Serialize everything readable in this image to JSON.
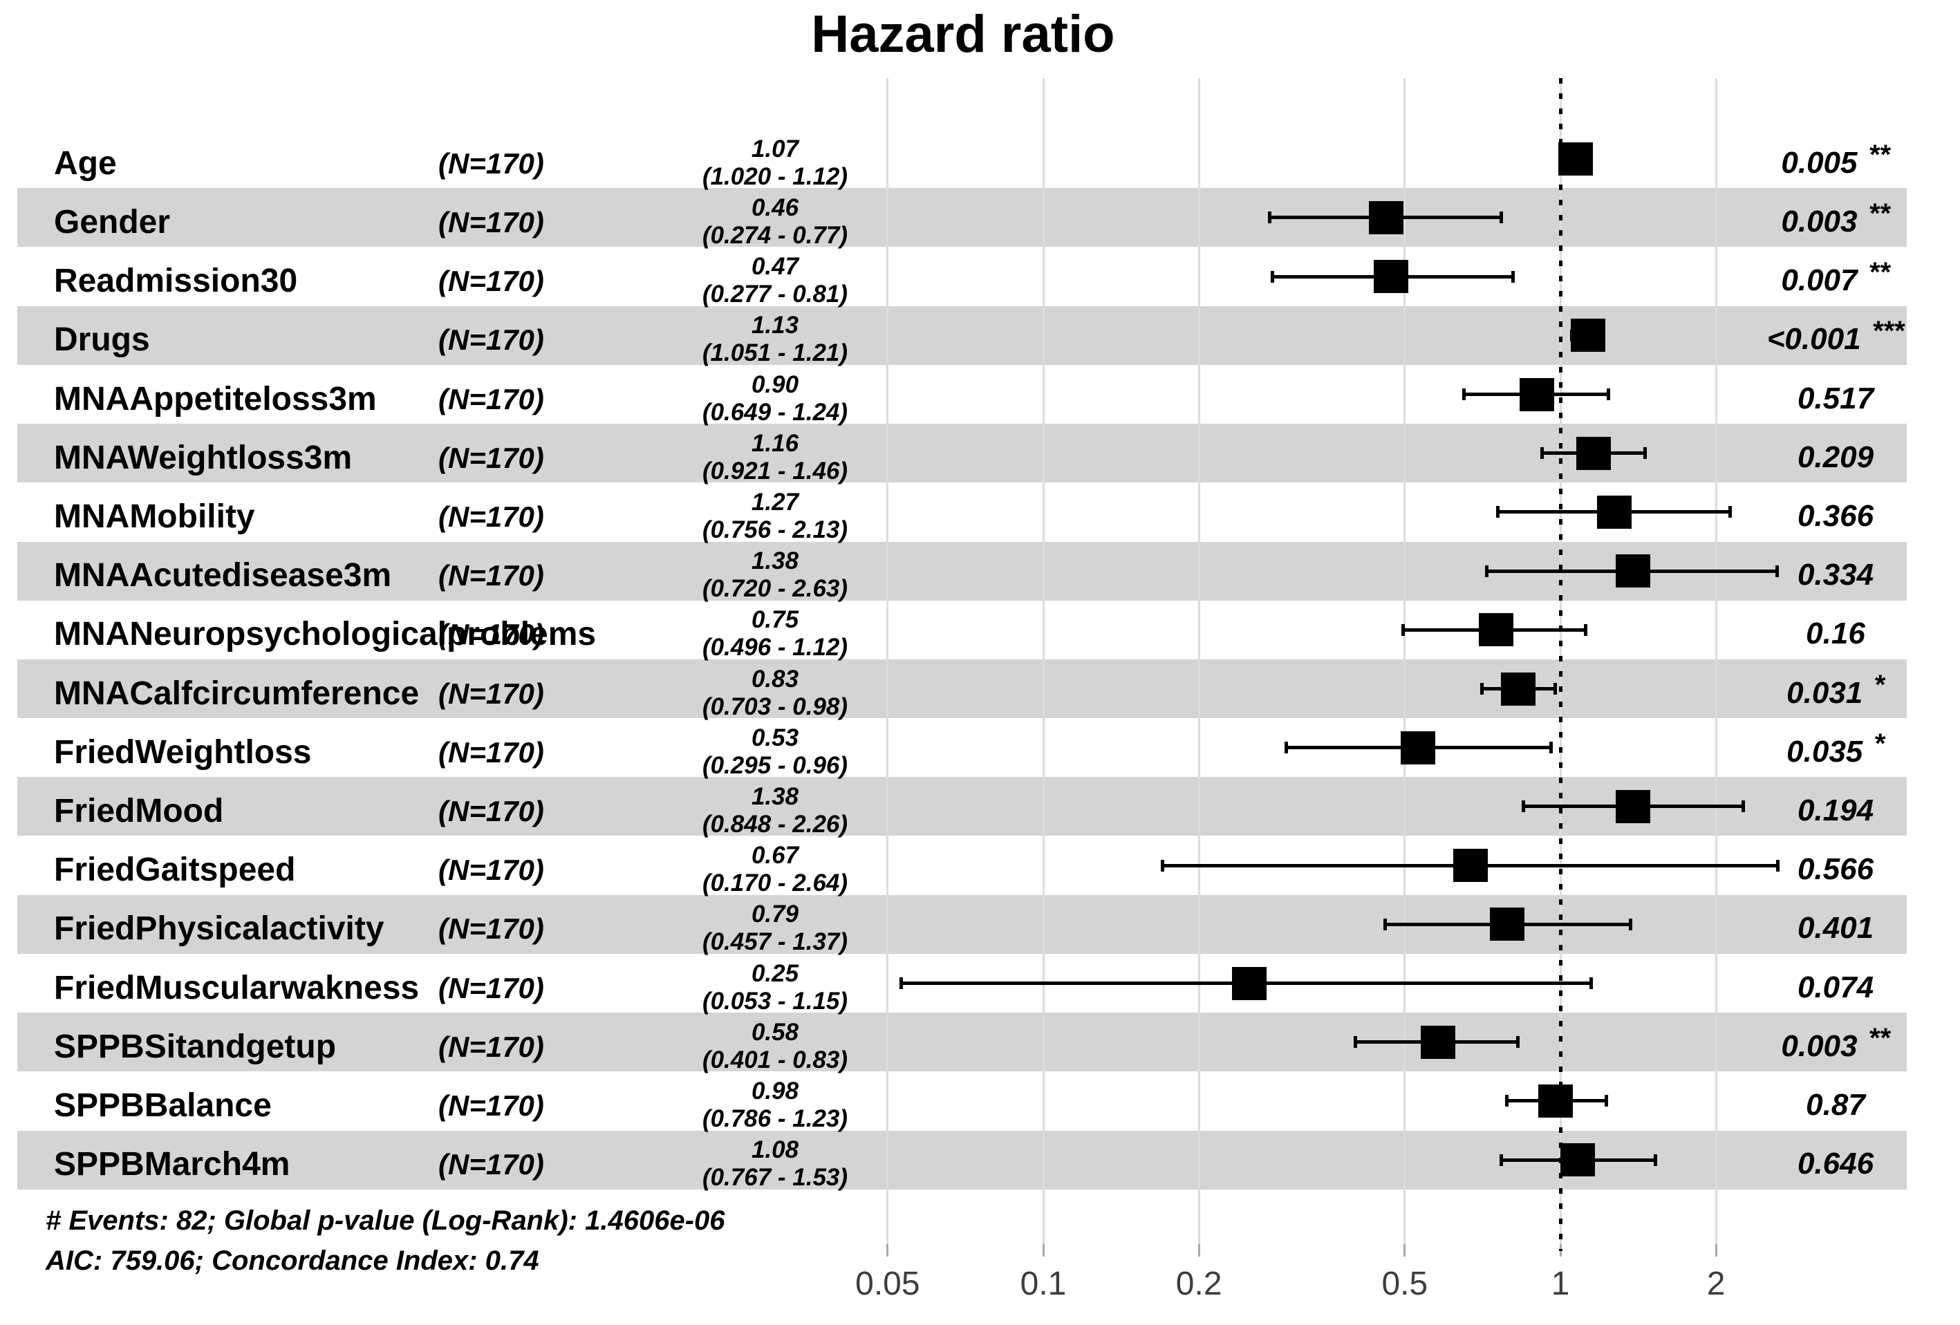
{
  "title": "Hazard ratio",
  "colors": {
    "background": "#ffffff",
    "row_band": "#d4d4d4",
    "gridline": "#dcdcdc",
    "axis_tick": "#a8a8a8",
    "axis_label": "#3d3d3d",
    "marker": "#000000",
    "text": "#000000"
  },
  "chart_data": {
    "type": "scatter",
    "subtype": "forest_plot_hazard_ratios",
    "title": "Hazard ratio",
    "x_scale": "log10",
    "x_ticks": [
      0.05,
      0.1,
      0.2,
      0.5,
      1,
      2
    ],
    "x_tick_labels": [
      "0.05",
      "0.1",
      "0.2",
      "0.5",
      "1",
      "2"
    ],
    "xlim": [
      0.04,
      3.5
    ],
    "reference_line": 1,
    "grid": true,
    "legend": "none",
    "marker": "filled-square-with-ci-whiskers",
    "rows": [
      {
        "label": "Age",
        "n": "(N=170)",
        "hr": 1.07,
        "ci_low": 1.02,
        "ci_high": 1.12,
        "hr_label": "1.07",
        "ci_label": "(1.020 - 1.12)",
        "p": "0.005",
        "stars": "**"
      },
      {
        "label": "Gender",
        "n": "(N=170)",
        "hr": 0.46,
        "ci_low": 0.274,
        "ci_high": 0.77,
        "hr_label": "0.46",
        "ci_label": "(0.274 - 0.77)",
        "p": "0.003",
        "stars": "**"
      },
      {
        "label": "Readmission30",
        "n": "(N=170)",
        "hr": 0.47,
        "ci_low": 0.277,
        "ci_high": 0.81,
        "hr_label": "0.47",
        "ci_label": "(0.277 - 0.81)",
        "p": "0.007",
        "stars": "**"
      },
      {
        "label": "Drugs",
        "n": "(N=170)",
        "hr": 1.13,
        "ci_low": 1.051,
        "ci_high": 1.21,
        "hr_label": "1.13",
        "ci_label": "(1.051 - 1.21)",
        "p": "<0.001",
        "stars": "***"
      },
      {
        "label": "MNAAppetiteloss3m",
        "n": "(N=170)",
        "hr": 0.9,
        "ci_low": 0.649,
        "ci_high": 1.24,
        "hr_label": "0.90",
        "ci_label": "(0.649 - 1.24)",
        "p": "0.517",
        "stars": ""
      },
      {
        "label": "MNAWeightloss3m",
        "n": "(N=170)",
        "hr": 1.16,
        "ci_low": 0.921,
        "ci_high": 1.46,
        "hr_label": "1.16",
        "ci_label": "(0.921 - 1.46)",
        "p": "0.209",
        "stars": ""
      },
      {
        "label": "MNAMobility",
        "n": "(N=170)",
        "hr": 1.27,
        "ci_low": 0.756,
        "ci_high": 2.13,
        "hr_label": "1.27",
        "ci_label": "(0.756 - 2.13)",
        "p": "0.366",
        "stars": ""
      },
      {
        "label": "MNAAcutedisease3m",
        "n": "(N=170)",
        "hr": 1.38,
        "ci_low": 0.72,
        "ci_high": 2.63,
        "hr_label": "1.38",
        "ci_label": "(0.720 - 2.63)",
        "p": "0.334",
        "stars": ""
      },
      {
        "label": "MNANeuropsychologicalproblems",
        "n": "(N=170)",
        "hr": 0.75,
        "ci_low": 0.496,
        "ci_high": 1.12,
        "hr_label": "0.75",
        "ci_label": "(0.496 - 1.12)",
        "p": "0.16",
        "stars": ""
      },
      {
        "label": "MNACalfcircumference",
        "n": "(N=170)",
        "hr": 0.83,
        "ci_low": 0.703,
        "ci_high": 0.98,
        "hr_label": "0.83",
        "ci_label": "(0.703 - 0.98)",
        "p": "0.031",
        "stars": "*"
      },
      {
        "label": "FriedWeightloss",
        "n": "(N=170)",
        "hr": 0.53,
        "ci_low": 0.295,
        "ci_high": 0.96,
        "hr_label": "0.53",
        "ci_label": "(0.295 - 0.96)",
        "p": "0.035",
        "stars": "*"
      },
      {
        "label": "FriedMood",
        "n": "(N=170)",
        "hr": 1.38,
        "ci_low": 0.848,
        "ci_high": 2.26,
        "hr_label": "1.38",
        "ci_label": "(0.848 - 2.26)",
        "p": "0.194",
        "stars": ""
      },
      {
        "label": "FriedGaitspeed",
        "n": "(N=170)",
        "hr": 0.67,
        "ci_low": 0.17,
        "ci_high": 2.64,
        "hr_label": "0.67",
        "ci_label": "(0.170 - 2.64)",
        "p": "0.566",
        "stars": ""
      },
      {
        "label": "FriedPhysicalactivity",
        "n": "(N=170)",
        "hr": 0.79,
        "ci_low": 0.457,
        "ci_high": 1.37,
        "hr_label": "0.79",
        "ci_label": "(0.457 - 1.37)",
        "p": "0.401",
        "stars": ""
      },
      {
        "label": "FriedMuscularwakness",
        "n": "(N=170)",
        "hr": 0.25,
        "ci_low": 0.053,
        "ci_high": 1.15,
        "hr_label": "0.25",
        "ci_label": "(0.053 - 1.15)",
        "p": "0.074",
        "stars": ""
      },
      {
        "label": "SPPBSitandgetup",
        "n": "(N=170)",
        "hr": 0.58,
        "ci_low": 0.401,
        "ci_high": 0.83,
        "hr_label": "0.58",
        "ci_label": "(0.401 - 0.83)",
        "p": "0.003",
        "stars": "**"
      },
      {
        "label": "SPPBBalance",
        "n": "(N=170)",
        "hr": 0.98,
        "ci_low": 0.786,
        "ci_high": 1.23,
        "hr_label": "0.98",
        "ci_label": "(0.786 - 1.23)",
        "p": "0.87",
        "stars": ""
      },
      {
        "label": "SPPBMarch4m",
        "n": "(N=170)",
        "hr": 1.08,
        "ci_low": 0.767,
        "ci_high": 1.53,
        "hr_label": "1.08",
        "ci_label": "(0.767 - 1.53)",
        "p": "0.646",
        "stars": ""
      }
    ],
    "footnotes": [
      "# Events: 82; Global p-value (Log-Rank): 1.4606e-06",
      "AIC: 759.06; Concordance Index: 0.74"
    ]
  }
}
